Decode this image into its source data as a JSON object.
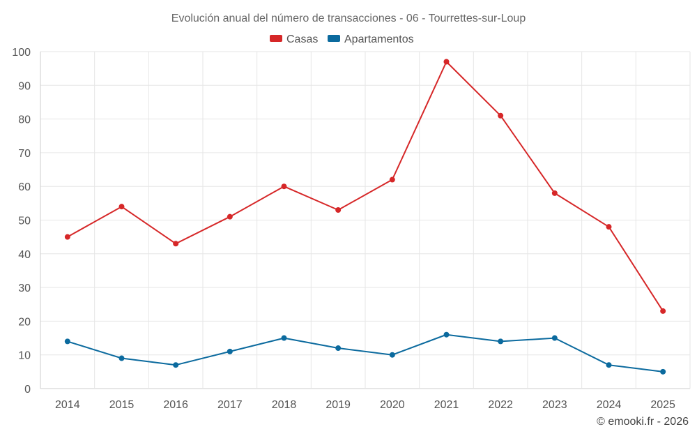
{
  "chart_data": {
    "type": "line",
    "title": "Evolución anual del número de transacciones - 06 - Tourrettes-sur-Loup",
    "categories": [
      "2014",
      "2015",
      "2016",
      "2017",
      "2018",
      "2019",
      "2020",
      "2021",
      "2022",
      "2023",
      "2024",
      "2025"
    ],
    "series": [
      {
        "name": "Casas",
        "color": "#d62728",
        "values": [
          45,
          54,
          43,
          51,
          60,
          53,
          62,
          97,
          81,
          58,
          48,
          23
        ]
      },
      {
        "name": "Apartamentos",
        "color": "#0b6a9e",
        "values": [
          14,
          9,
          7,
          11,
          15,
          12,
          10,
          16,
          14,
          15,
          7,
          5
        ]
      }
    ],
    "ylim": [
      0,
      100
    ],
    "yticks": [
      0,
      10,
      20,
      30,
      40,
      50,
      60,
      70,
      80,
      90,
      100
    ],
    "xlabel": "",
    "ylabel": "",
    "grid": true,
    "legend": "top-center"
  },
  "credit": "© emooki.fr - 2026"
}
